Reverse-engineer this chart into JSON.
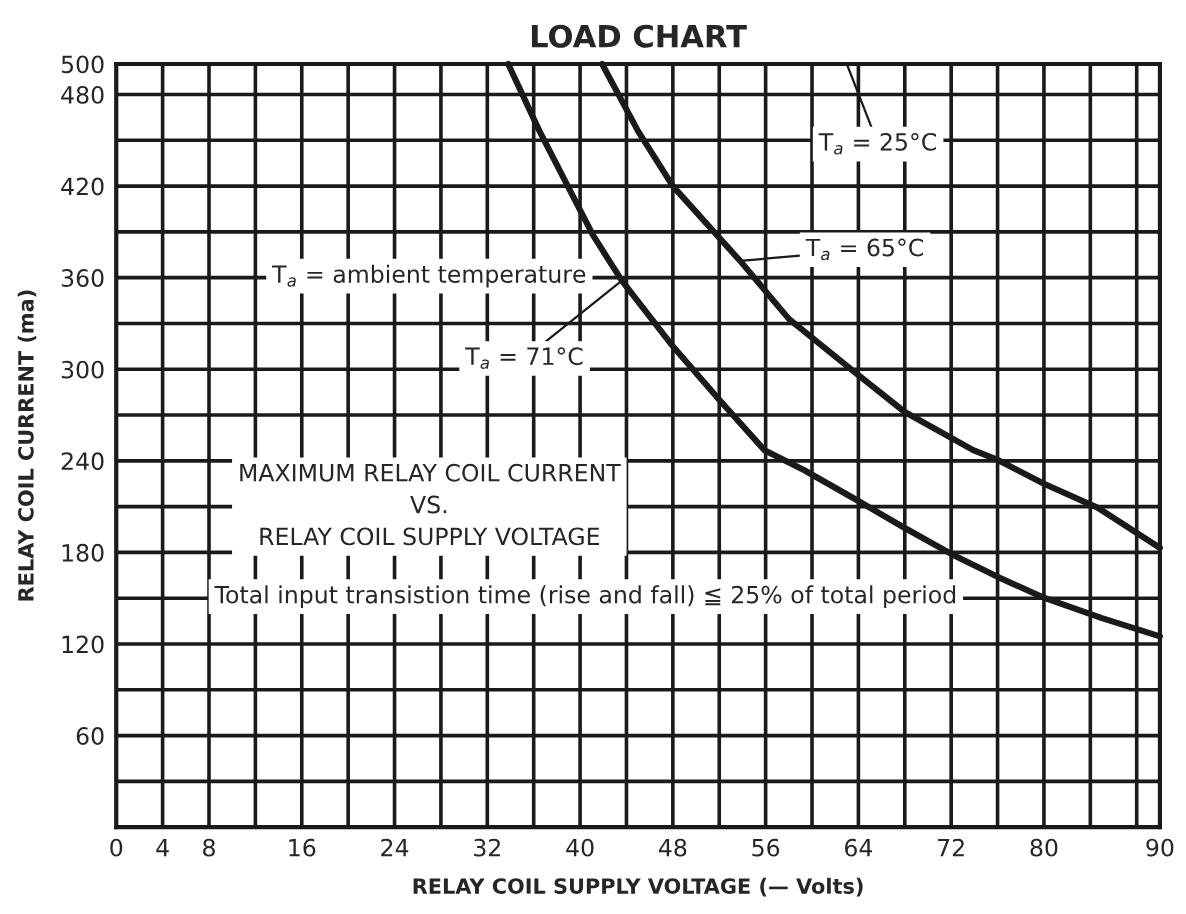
{
  "chart_data": {
    "type": "line",
    "title": "LOAD CHART",
    "xlabel": "RELAY COIL SUPPLY VOLTAGE (— Volts)",
    "ylabel": "RELAY COIL CURRENT (ma)",
    "series": [
      {
        "color": "#1a1a1a",
        "x": [
          33.8,
          36.5,
          41.1,
          43.6,
          48,
          52,
          55.9,
          59.3,
          63.7,
          68,
          72,
          76,
          80.1,
          85,
          90
        ],
        "values": [
          500,
          456,
          388,
          358,
          315,
          280,
          247,
          234,
          215,
          196,
          179,
          164,
          150,
          137,
          125
        ]
      },
      {
        "color": "#1a1a1a",
        "x": [
          41.9,
          45,
          48,
          53.8,
          58,
          63.7,
          68,
          73.9,
          75.9,
          80,
          84.7,
          90
        ],
        "values": [
          500,
          456,
          420,
          371,
          333,
          298,
          272,
          247,
          241,
          225,
          209,
          183
        ]
      }
    ],
    "xlim": [
      0,
      90
    ],
    "ylim": [
      0,
      500
    ],
    "xticks": [
      0,
      4,
      8,
      {
        "value": 12,
        "label": null
      },
      16,
      {
        "value": 20,
        "label": null
      },
      24,
      {
        "value": 28,
        "label": null
      },
      32,
      {
        "value": 36,
        "label": null
      },
      40,
      {
        "value": 44,
        "label": null
      },
      48,
      {
        "value": 52,
        "label": null
      },
      56,
      {
        "value": 60,
        "label": null
      },
      64,
      {
        "value": 68,
        "label": null
      },
      72,
      {
        "value": 76,
        "label": null
      },
      80,
      {
        "value": 84,
        "label": null
      },
      {
        "value": 88,
        "label": null
      },
      90
    ],
    "yticks": [
      {
        "value": 30,
        "label": null
      },
      60,
      {
        "value": 90,
        "label": null
      },
      120,
      {
        "value": 150,
        "label": null
      },
      180,
      {
        "value": 210,
        "label": null
      },
      240,
      {
        "value": 270,
        "label": null
      },
      300,
      {
        "value": 330,
        "label": null
      },
      360,
      {
        "value": 390,
        "label": null
      },
      420,
      {
        "value": 450,
        "label": null
      },
      480,
      500
    ],
    "grid": true,
    "marker": "none",
    "line_style": "solid",
    "legend": false,
    "annotations": [
      "T$_{a}$ = ambient temperature",
      "T$_{a}$ = 25°C",
      {
        "text": "T$_{a}$ = 65°C",
        "x": 53.8,
        "y": 371
      },
      {
        "text": "T$_{a}$ = 71°C",
        "x": 43.6,
        "y": 358
      },
      "MAXIMUM RELAY COIL CURRENT\nVS.\nRELAY COIL SUPPLY VOLTAGE",
      "Total input transistion time (rise and fall) ≦ 25% of total period"
    ]
  }
}
